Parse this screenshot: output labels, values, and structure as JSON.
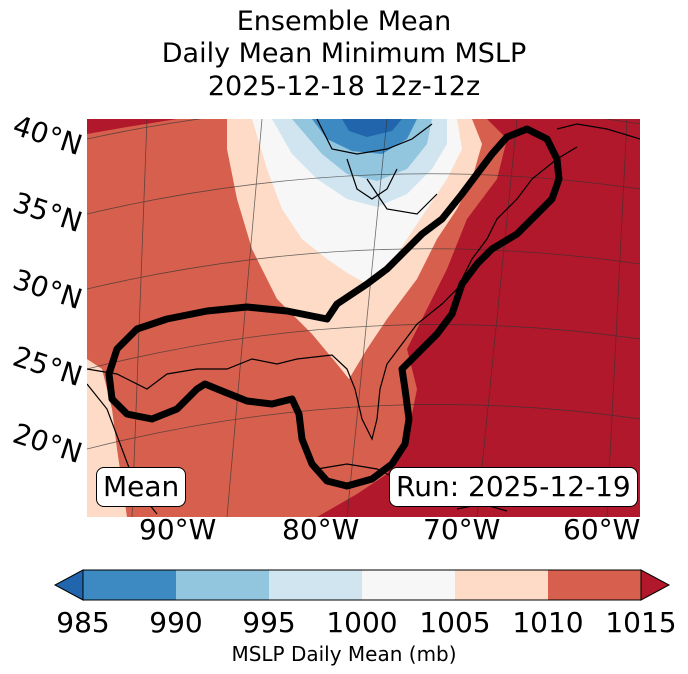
{
  "title": {
    "line1": "Ensemble Mean",
    "line2": "Daily Mean Minimum MSLP",
    "line3": "2025-12-18 12z-12z"
  },
  "lat_labels": [
    "40°N",
    "35°N",
    "30°N",
    "25°N",
    "20°N"
  ],
  "lon_labels": [
    "90°W",
    "80°W",
    "70°W",
    "60°W"
  ],
  "inset_label": "Mean",
  "run_label": "Run: 2025-12-19",
  "colorbar": {
    "ticks": [
      "985",
      "990",
      "995",
      "1000",
      "1005",
      "1010",
      "1015"
    ],
    "label": "MSLP Daily Mean (mb)",
    "colors": [
      "#2166ac",
      "#3d8ac2",
      "#92c5de",
      "#d1e5f0",
      "#f7f7f7",
      "#fddbc7",
      "#d6604d",
      "#b2182b"
    ]
  },
  "outline_color": "#000000"
}
